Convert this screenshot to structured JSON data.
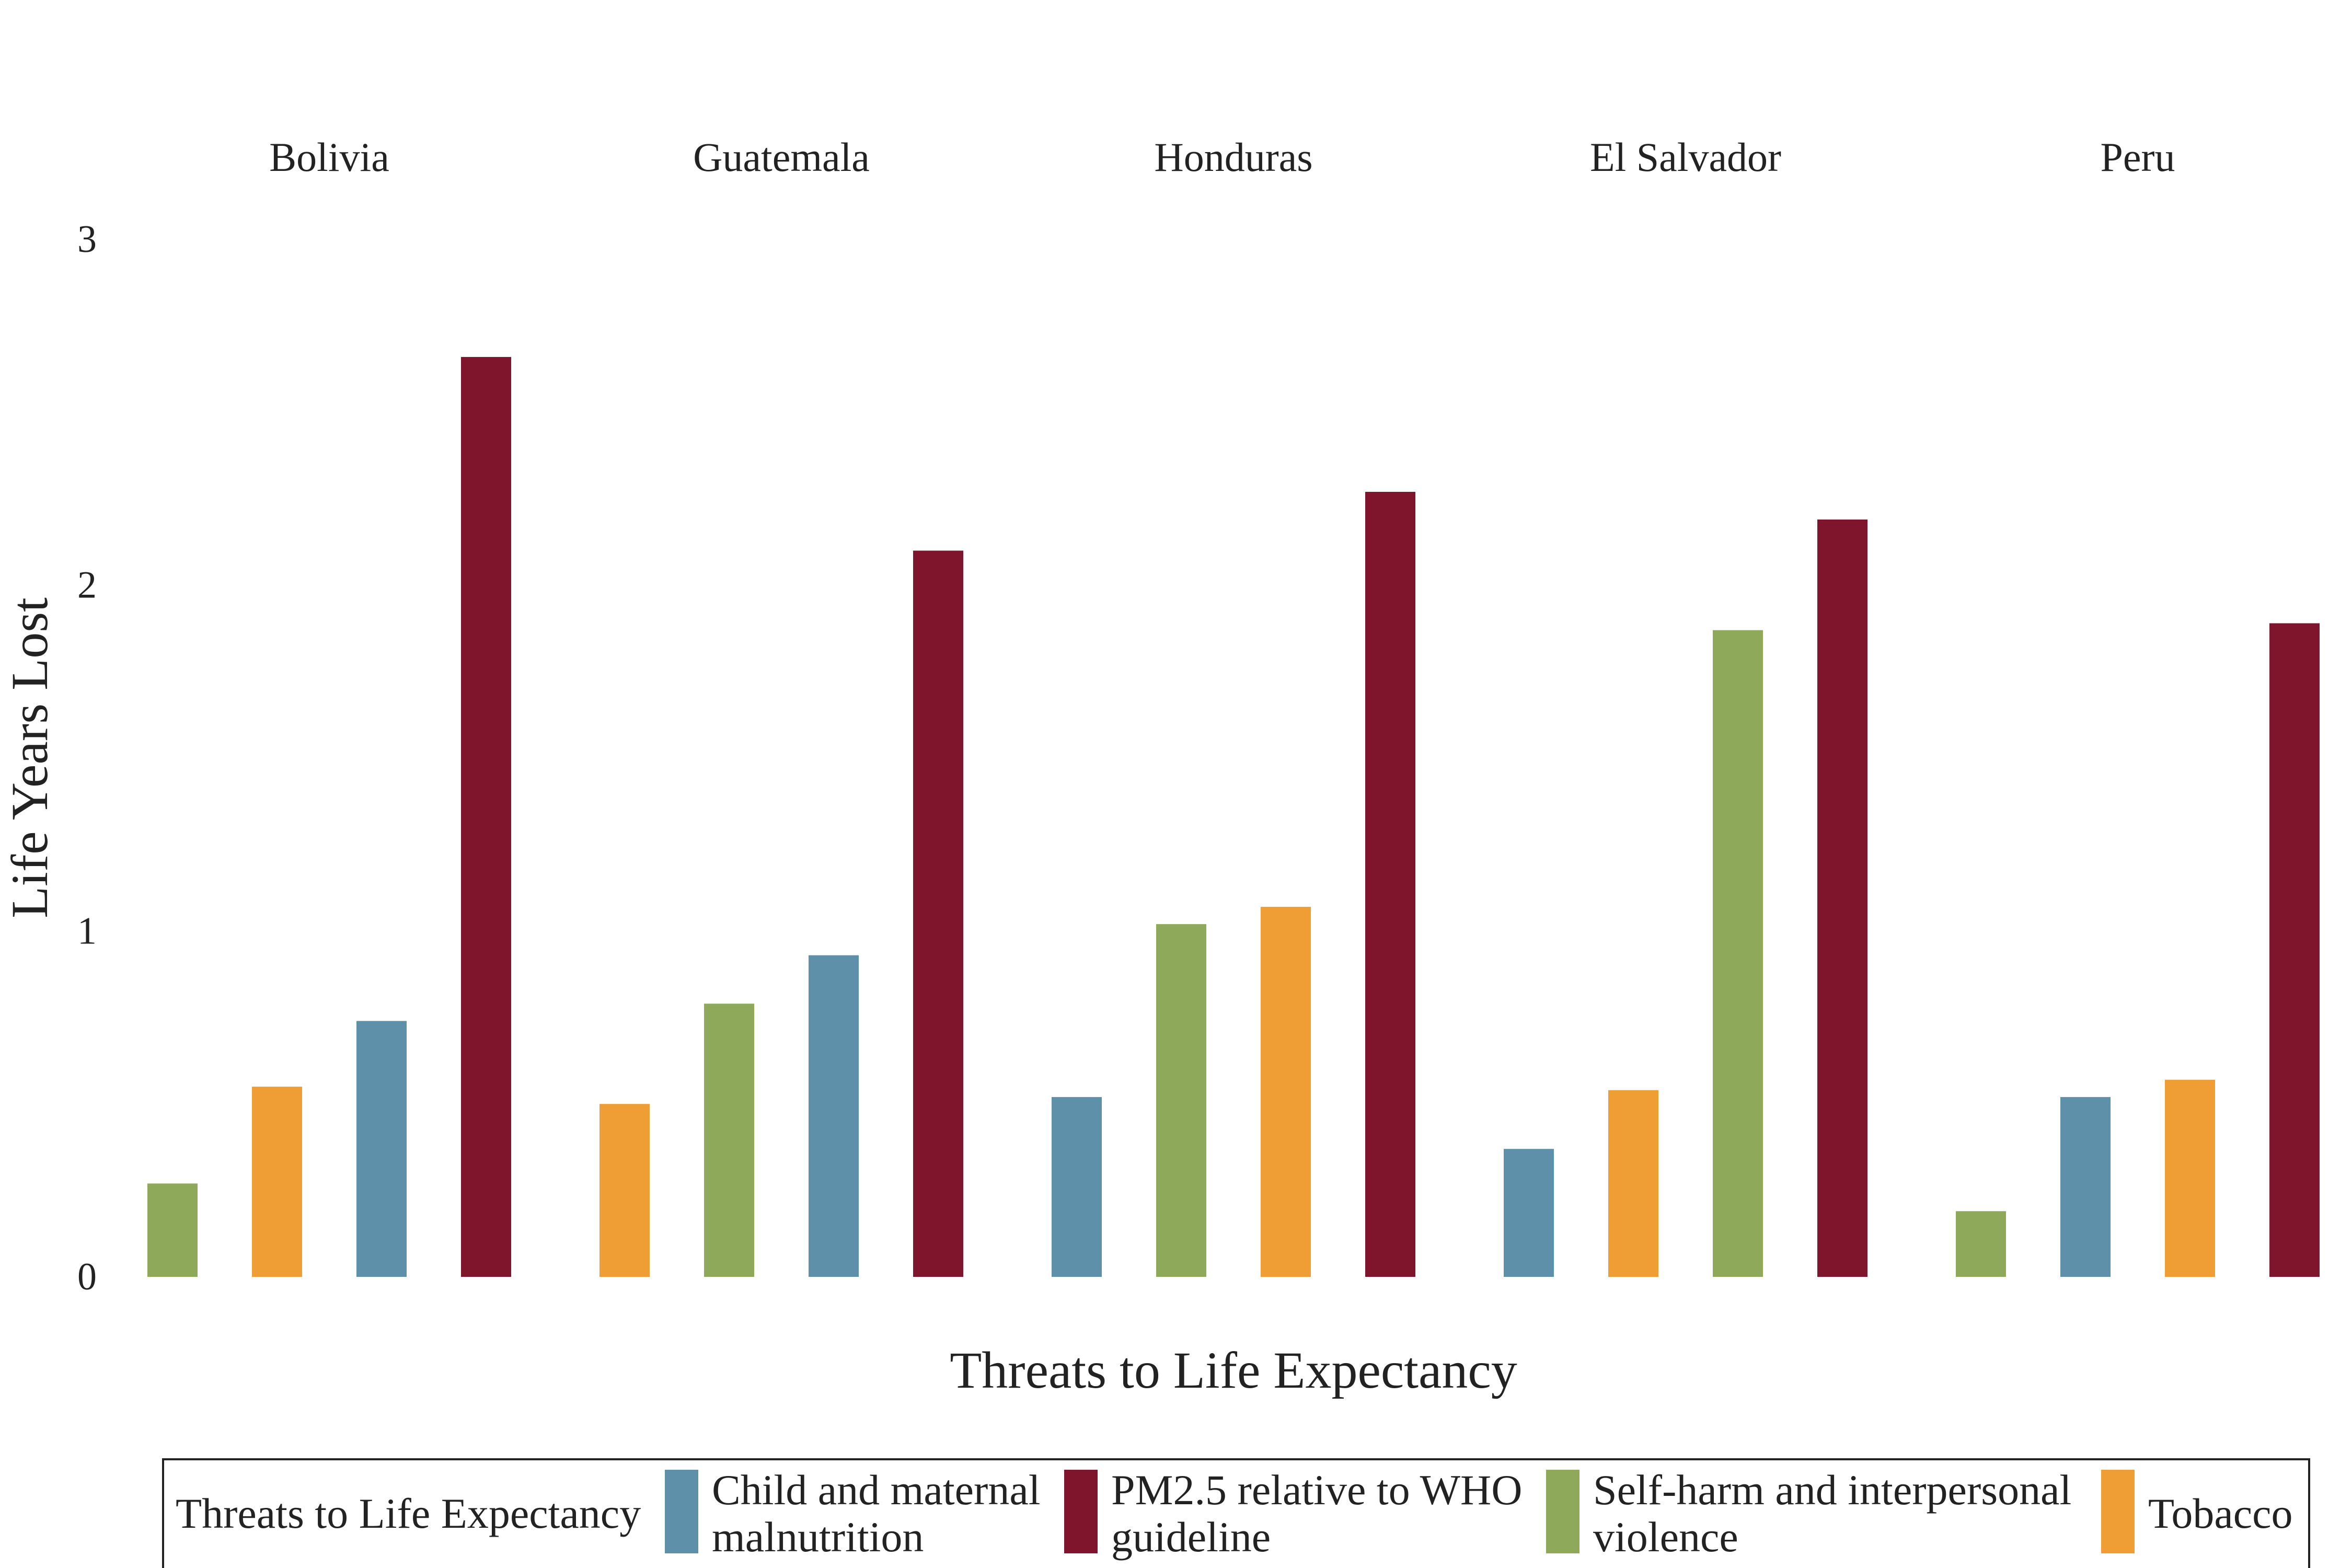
{
  "chart_data": {
    "type": "bar",
    "xlabel": "Threats to Life Expectancy",
    "ylabel": "Life Years Lost",
    "ylim": [
      0,
      3
    ],
    "yticks": [
      "0",
      "1",
      "2",
      "3"
    ],
    "grid": false,
    "legend_position": "bottom",
    "legend": {
      "title": "Threats to Life Expectancy",
      "items": [
        {
          "key": "child",
          "lines": [
            "Child and maternal",
            "malnutrition"
          ],
          "color": "#5e90aa"
        },
        {
          "key": "pm25",
          "lines": [
            "PM2.5 relative to WHO",
            "guideline"
          ],
          "color": "#7e152d"
        },
        {
          "key": "selfharm",
          "lines": [
            "Self-harm and interpersonal",
            "violence"
          ],
          "color": "#8ea95a"
        },
        {
          "key": "tobacco",
          "lines": [
            "Tobacco"
          ],
          "color": "#ef9e35"
        }
      ]
    },
    "panels": [
      {
        "country": "Bolivia",
        "bars": [
          {
            "threat": "selfharm",
            "value": 0.27
          },
          {
            "threat": "tobacco",
            "value": 0.55
          },
          {
            "threat": "child",
            "value": 0.74
          },
          {
            "threat": "pm25",
            "value": 2.66
          }
        ]
      },
      {
        "country": "Guatemala",
        "bars": [
          {
            "threat": "tobacco",
            "value": 0.5
          },
          {
            "threat": "selfharm",
            "value": 0.79
          },
          {
            "threat": "child",
            "value": 0.93
          },
          {
            "threat": "pm25",
            "value": 2.1
          }
        ]
      },
      {
        "country": "Honduras",
        "bars": [
          {
            "threat": "child",
            "value": 0.52
          },
          {
            "threat": "selfharm",
            "value": 1.02
          },
          {
            "threat": "tobacco",
            "value": 1.07
          },
          {
            "threat": "pm25",
            "value": 2.27
          }
        ]
      },
      {
        "country": "El Salvador",
        "bars": [
          {
            "threat": "child",
            "value": 0.37
          },
          {
            "threat": "tobacco",
            "value": 0.54
          },
          {
            "threat": "selfharm",
            "value": 1.87
          },
          {
            "threat": "pm25",
            "value": 2.19
          }
        ]
      },
      {
        "country": "Peru",
        "bars": [
          {
            "threat": "selfharm",
            "value": 0.19
          },
          {
            "threat": "child",
            "value": 0.52
          },
          {
            "threat": "tobacco",
            "value": 0.57
          },
          {
            "threat": "pm25",
            "value": 1.89
          }
        ]
      }
    ]
  }
}
